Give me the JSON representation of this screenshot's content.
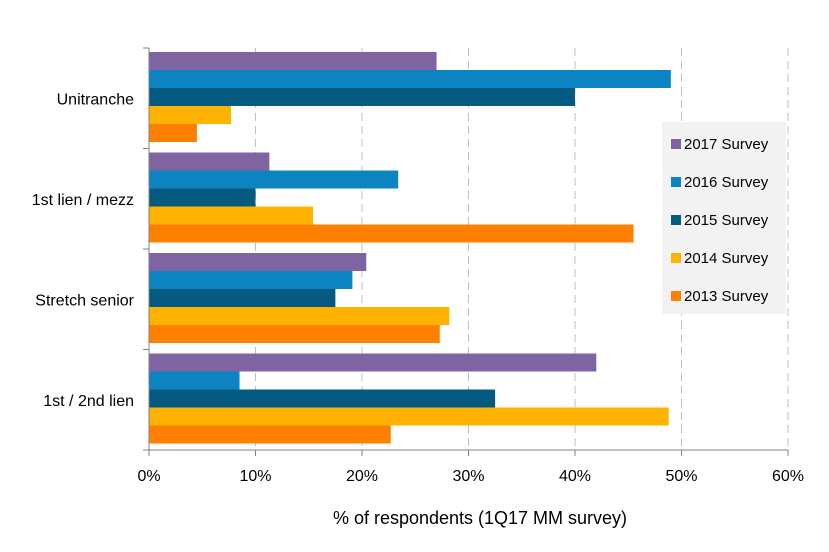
{
  "chart_data": {
    "type": "bar",
    "orientation": "horizontal",
    "title": "",
    "xlabel": "% of respondents (1Q17 MM survey)",
    "ylabel": "",
    "categories": [
      "Unitranche",
      "1st lien / mezz",
      "Stretch senior",
      "1st / 2nd lien"
    ],
    "xlim": [
      0,
      60
    ],
    "x_ticks": [
      "0%",
      "10%",
      "20%",
      "30%",
      "40%",
      "50%",
      "60%"
    ],
    "grid": "vertical dashed",
    "legend_position": "right",
    "series": [
      {
        "name": "2017 Survey",
        "color": "#8064A2",
        "values": [
          27,
          11.3,
          20.4,
          42
        ]
      },
      {
        "name": "2016 Survey",
        "color": "#0B84C1",
        "values": [
          49,
          23.4,
          19.1,
          8.5
        ]
      },
      {
        "name": "2015 Survey",
        "color": "#055A82",
        "values": [
          40,
          10,
          17.5,
          32.5
        ]
      },
      {
        "name": "2014 Survey",
        "color": "#FFB300",
        "values": [
          7.7,
          15.4,
          28.2,
          48.8
        ]
      },
      {
        "name": "2013 Survey",
        "color": "#FF8000",
        "values": [
          4.5,
          45.5,
          27.3,
          22.7
        ]
      }
    ]
  }
}
